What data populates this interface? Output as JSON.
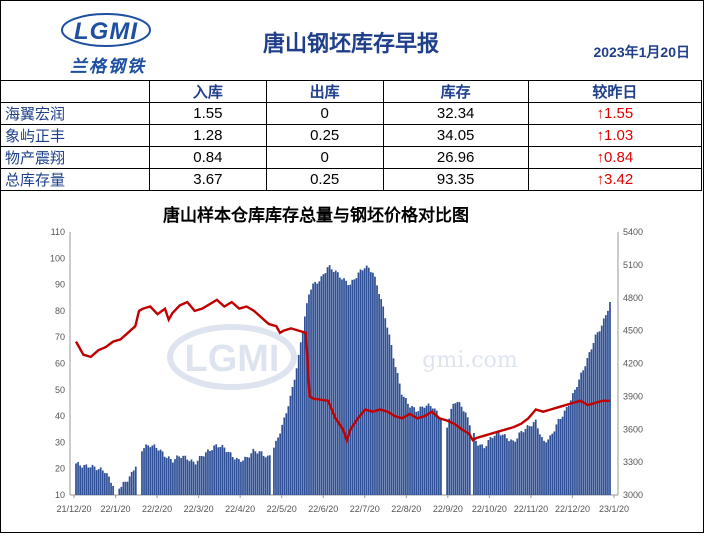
{
  "header": {
    "logo_text": "LGMI",
    "logo_sub": "兰格钢铁",
    "title": "唐山钢坯库存早报",
    "date": "2023年1月20日"
  },
  "table": {
    "columns": [
      "",
      "入库",
      "出库",
      "库存",
      "较昨日"
    ],
    "rows": [
      {
        "name": "海翼宏润",
        "in": "1.55",
        "out": "0",
        "stock": "32.34",
        "change": "↑1.55"
      },
      {
        "name": "象屿正丰",
        "in": "1.28",
        "out": "0.25",
        "stock": "34.05",
        "change": "↑1.03"
      },
      {
        "name": "物产震翔",
        "in": "0.84",
        "out": "0",
        "stock": "26.96",
        "change": "↑0.84"
      },
      {
        "name": "总库存量",
        "in": "3.67",
        "out": "0.25",
        "stock": "93.35",
        "change": "↑3.42"
      }
    ]
  },
  "colors": {
    "bar": "#2e4f96",
    "line": "#c00000",
    "title": "#1f3f8a",
    "change": "#e00000"
  },
  "chart_data": {
    "type": "bar",
    "title": "唐山样本仓库库存总量与钢坯价格对比图",
    "watermark": "LGMI",
    "watermark_text": "gmi.com",
    "y_left": {
      "min": 10,
      "max": 110,
      "ticks": [
        "110",
        "100",
        "90",
        "80",
        "70",
        "60",
        "50",
        "40",
        "30",
        "20",
        "10"
      ]
    },
    "y_right": {
      "min": 3000,
      "max": 5400,
      "ticks": [
        "5400",
        "5100",
        "4800",
        "4500",
        "4200",
        "3900",
        "3600",
        "3300",
        "3000"
      ]
    },
    "x_ticks": [
      "21/12/20",
      "22/1/20",
      "22/2/20",
      "22/3/20",
      "22/4/20",
      "22/5/20",
      "22/6/20",
      "22/7/20",
      "22/8/20",
      "22/9/20",
      "22/10/20",
      "22/11/20",
      "22/12/20",
      "23/1/20"
    ],
    "series": [
      {
        "values": [
          [
            0,
            22
          ],
          [
            2,
            21
          ],
          [
            4,
            21
          ],
          [
            6,
            20
          ],
          [
            8,
            19
          ],
          [
            9,
            16
          ],
          [
            10,
            14
          ],
          [
            12,
            13
          ],
          [
            14,
            16
          ],
          [
            15,
            18
          ],
          [
            16,
            21
          ],
          [
            18,
            28
          ],
          [
            20,
            29
          ],
          [
            22,
            28
          ],
          [
            24,
            25
          ],
          [
            26,
            23
          ],
          [
            28,
            25
          ],
          [
            30,
            24
          ],
          [
            32,
            22
          ],
          [
            34,
            25
          ],
          [
            36,
            27
          ],
          [
            38,
            29
          ],
          [
            40,
            28
          ],
          [
            42,
            25
          ],
          [
            44,
            23
          ],
          [
            46,
            24
          ],
          [
            48,
            27
          ],
          [
            50,
            26
          ],
          [
            52,
            24
          ],
          [
            54,
            30
          ],
          [
            56,
            38
          ],
          [
            58,
            48
          ],
          [
            60,
            62
          ],
          [
            61,
            72
          ],
          [
            62,
            80
          ],
          [
            63,
            88
          ],
          [
            64,
            90
          ],
          [
            66,
            92
          ],
          [
            68,
            97
          ],
          [
            70,
            95
          ],
          [
            72,
            92
          ],
          [
            74,
            90
          ],
          [
            76,
            94
          ],
          [
            78,
            97
          ],
          [
            80,
            95
          ],
          [
            82,
            86
          ],
          [
            84,
            74
          ],
          [
            86,
            60
          ],
          [
            88,
            48
          ],
          [
            90,
            44
          ],
          [
            92,
            42
          ],
          [
            94,
            44
          ],
          [
            96,
            44
          ],
          [
            98,
            40
          ],
          [
            100,
            36
          ],
          [
            102,
            46
          ],
          [
            104,
            44
          ],
          [
            106,
            38
          ],
          [
            108,
            30
          ],
          [
            110,
            28
          ],
          [
            112,
            32
          ],
          [
            114,
            34
          ],
          [
            116,
            32
          ],
          [
            118,
            30
          ],
          [
            120,
            34
          ],
          [
            122,
            36
          ],
          [
            124,
            38
          ],
          [
            126,
            30
          ],
          [
            128,
            32
          ],
          [
            130,
            38
          ],
          [
            132,
            42
          ],
          [
            134,
            48
          ],
          [
            136,
            55
          ],
          [
            138,
            62
          ],
          [
            140,
            70
          ],
          [
            142,
            75
          ],
          [
            144,
            83
          ]
        ]
      },
      {
        "values": [
          [
            0,
            4400
          ],
          [
            2,
            4280
          ],
          [
            4,
            4260
          ],
          [
            6,
            4320
          ],
          [
            8,
            4350
          ],
          [
            10,
            4400
          ],
          [
            12,
            4420
          ],
          [
            14,
            4480
          ],
          [
            16,
            4540
          ],
          [
            17,
            4680
          ],
          [
            18,
            4700
          ],
          [
            20,
            4720
          ],
          [
            22,
            4650
          ],
          [
            24,
            4700
          ],
          [
            25,
            4600
          ],
          [
            26,
            4660
          ],
          [
            28,
            4730
          ],
          [
            30,
            4760
          ],
          [
            32,
            4680
          ],
          [
            34,
            4700
          ],
          [
            36,
            4740
          ],
          [
            38,
            4780
          ],
          [
            40,
            4720
          ],
          [
            42,
            4760
          ],
          [
            44,
            4700
          ],
          [
            46,
            4720
          ],
          [
            48,
            4680
          ],
          [
            50,
            4620
          ],
          [
            52,
            4560
          ],
          [
            54,
            4540
          ],
          [
            55,
            4480
          ],
          [
            56,
            4500
          ],
          [
            58,
            4520
          ],
          [
            60,
            4500
          ],
          [
            62,
            4480
          ],
          [
            63,
            3900
          ],
          [
            64,
            3880
          ],
          [
            66,
            3870
          ],
          [
            68,
            3860
          ],
          [
            70,
            3700
          ],
          [
            72,
            3600
          ],
          [
            73,
            3500
          ],
          [
            74,
            3600
          ],
          [
            76,
            3700
          ],
          [
            78,
            3780
          ],
          [
            80,
            3760
          ],
          [
            82,
            3780
          ],
          [
            84,
            3760
          ],
          [
            86,
            3720
          ],
          [
            88,
            3700
          ],
          [
            90,
            3740
          ],
          [
            92,
            3700
          ],
          [
            94,
            3720
          ],
          [
            96,
            3760
          ],
          [
            98,
            3700
          ],
          [
            100,
            3680
          ],
          [
            102,
            3650
          ],
          [
            104,
            3600
          ],
          [
            106,
            3560
          ],
          [
            107,
            3500
          ],
          [
            108,
            3520
          ],
          [
            110,
            3540
          ],
          [
            112,
            3560
          ],
          [
            114,
            3580
          ],
          [
            116,
            3600
          ],
          [
            118,
            3620
          ],
          [
            120,
            3650
          ],
          [
            122,
            3700
          ],
          [
            124,
            3780
          ],
          [
            126,
            3760
          ],
          [
            128,
            3780
          ],
          [
            130,
            3800
          ],
          [
            132,
            3820
          ],
          [
            134,
            3840
          ],
          [
            136,
            3860
          ],
          [
            138,
            3820
          ],
          [
            140,
            3840
          ],
          [
            142,
            3860
          ],
          [
            144,
            3860
          ]
        ]
      }
    ]
  }
}
